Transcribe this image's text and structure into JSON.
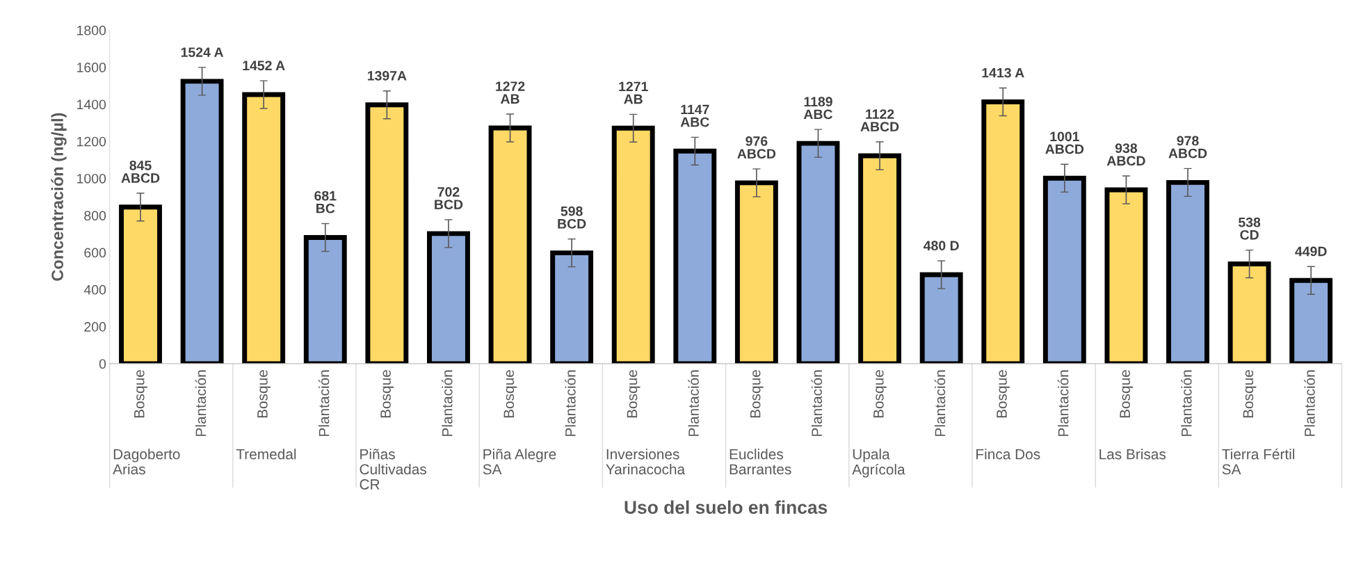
{
  "chart_data": {
    "type": "bar",
    "xlabel": "Uso del suelo en fincas",
    "ylabel": "Concentración (ng/µl)",
    "categories": [
      "Bosque",
      "Plantación",
      "Bosque",
      "Plantación",
      "Bosque",
      "Plantación",
      "Bosque",
      "Plantación",
      "Bosque",
      "Plantación",
      "Bosque",
      "Plantación",
      "Bosque",
      "Plantación",
      "Bosque",
      "Plantación",
      "Bosque",
      "Plantación",
      "Bosque",
      "Plantación"
    ],
    "values": [
      845,
      1524,
      1452,
      681,
      1397,
      702,
      1272,
      598,
      1271,
      1147,
      976,
      1189,
      1122,
      480,
      1413,
      1001,
      938,
      978,
      538,
      449
    ],
    "errors": [
      75,
      75,
      75,
      75,
      75,
      75,
      75,
      75,
      75,
      75,
      75,
      75,
      75,
      75,
      75,
      75,
      75,
      75,
      75,
      75
    ],
    "colors": [
      "#ffd966",
      "#8eaadb",
      "#ffd966",
      "#8eaadb",
      "#ffd966",
      "#8eaadb",
      "#ffd966",
      "#8eaadb",
      "#ffd966",
      "#8eaadb",
      "#ffd966",
      "#8eaadb",
      "#ffd966",
      "#8eaadb",
      "#ffd966",
      "#8eaadb",
      "#ffd966",
      "#8eaadb",
      "#ffd966",
      "#8eaadb"
    ],
    "value_labels": [
      "845\nABCD",
      "1524 A",
      "1452 A",
      "681\nBC",
      "1397A",
      "702\nBCD",
      "1272\nAB",
      "598\nBCD",
      "1271\nAB",
      "1147\nABC",
      "976\nABCD",
      "1189\nABC",
      "1122\nABCD",
      "480 D",
      "1413 A",
      "1001\nABCD",
      "938\nABCD",
      "978\nABCD",
      "538\nCD",
      "449D"
    ],
    "annotations": [
      "Dagoberto\nArias",
      "Tremedal",
      "Piñas\nCultivadas\nCR",
      "Piña Alegre\nSA",
      "Inversiones\nYarinacocha",
      "Euclides\nBarrantes",
      "Upala\nAgrícola",
      "Finca Dos",
      "Las Brisas",
      "Tierra Fértil\nSA"
    ],
    "ylim": [
      0,
      1800
    ],
    "yticks": [
      0,
      200,
      400,
      600,
      800,
      1000,
      1200,
      1400,
      1600,
      1800
    ],
    "grid": false,
    "legend": false
  }
}
